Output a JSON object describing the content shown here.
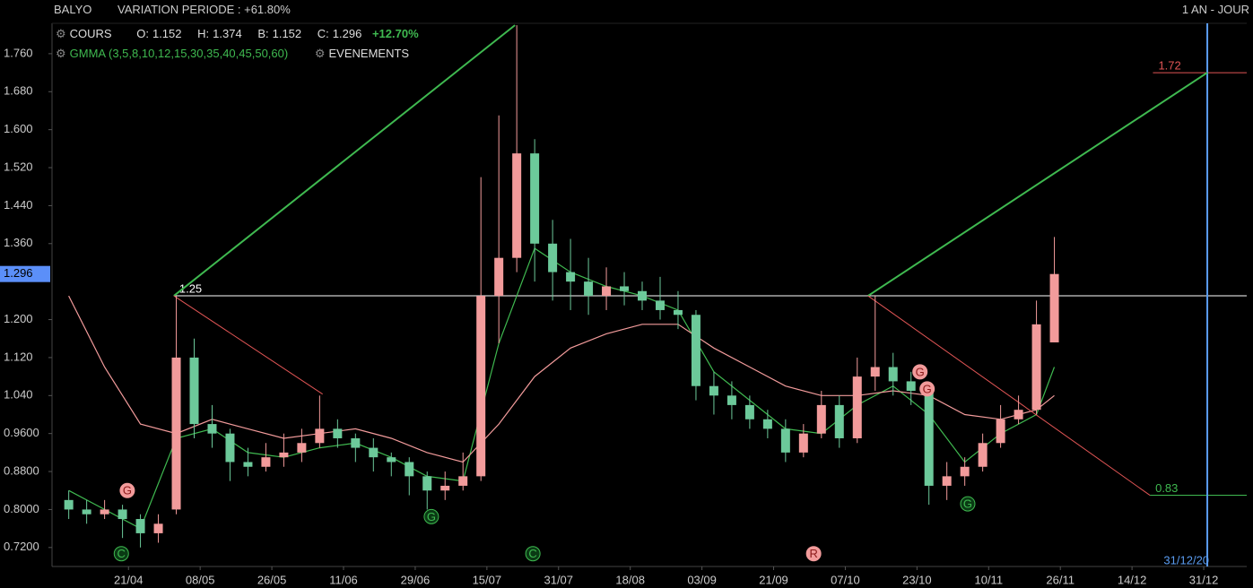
{
  "header": {
    "symbol": "BALYO",
    "variation": "VARIATION PERIODE : +61.80%",
    "period": "1 AN - JOUR"
  },
  "legend": {
    "cours": "COURS",
    "o": "O:",
    "h": "H:",
    "b": "B:",
    "c": "C:",
    "change": "+12.70%",
    "gmma": "GMMA (3,5,8,10,12,15,30,35,40,45,50,60)",
    "events": "EVENEMENTS"
  },
  "chart_data": {
    "type": "candlestick",
    "xlim": [
      -12.8,
      187.2
    ],
    "ylim": [
      0.68,
      1.824
    ],
    "xticks": [
      {
        "value": 0,
        "label": "21/04"
      },
      {
        "value": 12,
        "label": "08/05"
      },
      {
        "value": 24,
        "label": "26/05"
      },
      {
        "value": 36,
        "label": "11/06"
      },
      {
        "value": 48,
        "label": "29/06"
      },
      {
        "value": 60,
        "label": "15/07"
      },
      {
        "value": 72,
        "label": "31/07"
      },
      {
        "value": 84,
        "label": "18/08"
      },
      {
        "value": 96,
        "label": "03/09"
      },
      {
        "value": 108,
        "label": "21/09"
      },
      {
        "value": 120,
        "label": "07/10"
      },
      {
        "value": 132,
        "label": "23/10"
      },
      {
        "value": 144,
        "label": "10/11"
      },
      {
        "value": 156,
        "label": "26/11"
      },
      {
        "value": 168,
        "label": "14/12"
      },
      {
        "value": 180,
        "label": "31/12"
      }
    ],
    "yticks": [
      {
        "value": 1.76,
        "label": "1.760"
      },
      {
        "value": 1.68,
        "label": "1.680"
      },
      {
        "value": 1.6,
        "label": "1.600"
      },
      {
        "value": 1.52,
        "label": "1.520"
      },
      {
        "value": 1.44,
        "label": "1.440"
      },
      {
        "value": 1.36,
        "label": "1.360"
      },
      {
        "value": 1.2,
        "label": "1.200"
      },
      {
        "value": 1.12,
        "label": "1.120"
      },
      {
        "value": 1.04,
        "label": "1.040"
      },
      {
        "value": 0.96,
        "label": "0.9600"
      },
      {
        "value": 0.88,
        "label": "0.8800"
      },
      {
        "value": 0.8,
        "label": "0.8000"
      },
      {
        "value": 0.72,
        "label": "0.7200"
      }
    ],
    "up_color": "#f29b9b",
    "down_color": "#6cc99a",
    "candles": {
      "x": [
        -10,
        -7,
        -4,
        -1,
        2,
        5,
        8,
        11,
        14,
        17,
        20,
        23,
        26,
        29,
        32,
        35,
        38,
        41,
        44,
        47,
        50,
        53,
        56,
        59,
        62,
        65,
        68,
        71,
        74,
        77,
        80,
        83,
        86,
        89,
        92,
        95,
        98,
        101,
        104,
        107,
        110,
        113,
        116,
        119,
        122,
        125,
        128,
        131,
        134,
        137,
        140,
        143,
        146,
        149,
        152,
        155
      ],
      "open": [
        0.82,
        0.8,
        0.79,
        0.8,
        0.78,
        0.75,
        0.8,
        1.12,
        0.98,
        0.96,
        0.9,
        0.89,
        0.91,
        0.92,
        0.94,
        0.97,
        0.95,
        0.93,
        0.91,
        0.9,
        0.87,
        0.84,
        0.85,
        0.87,
        1.25,
        1.33,
        1.55,
        1.36,
        1.3,
        1.28,
        1.25,
        1.27,
        1.26,
        1.24,
        1.22,
        1.21,
        1.06,
        1.04,
        1.02,
        0.99,
        0.97,
        0.92,
        0.96,
        1.02,
        0.95,
        1.08,
        1.1,
        1.07,
        1.05,
        0.85,
        0.87,
        0.89,
        0.94,
        0.99,
        1.01,
        1.152
      ],
      "high": [
        0.84,
        0.82,
        0.82,
        0.81,
        0.79,
        0.79,
        1.25,
        1.16,
        1.02,
        0.97,
        0.93,
        0.94,
        0.96,
        0.97,
        1.04,
        0.99,
        0.96,
        0.95,
        0.92,
        0.91,
        0.88,
        0.88,
        0.92,
        1.5,
        1.63,
        1.82,
        1.58,
        1.41,
        1.37,
        1.33,
        1.31,
        1.3,
        1.28,
        1.29,
        1.26,
        1.22,
        1.09,
        1.07,
        1.04,
        1.01,
        0.99,
        0.98,
        1.05,
        1.04,
        1.12,
        1.25,
        1.13,
        1.09,
        1.06,
        0.9,
        0.91,
        0.96,
        1.02,
        1.04,
        1.24,
        1.374
      ],
      "low": [
        0.78,
        0.77,
        0.78,
        0.74,
        0.72,
        0.73,
        0.79,
        0.95,
        0.93,
        0.86,
        0.87,
        0.88,
        0.89,
        0.9,
        0.93,
        0.93,
        0.9,
        0.88,
        0.87,
        0.83,
        0.8,
        0.82,
        0.84,
        0.86,
        1.15,
        1.3,
        1.28,
        1.24,
        1.22,
        1.21,
        1.22,
        1.23,
        1.22,
        1.2,
        1.18,
        1.03,
        1.0,
        0.99,
        0.97,
        0.95,
        0.9,
        0.91,
        0.95,
        0.93,
        0.94,
        1.05,
        1.04,
        1.02,
        0.81,
        0.82,
        0.85,
        0.88,
        0.93,
        0.98,
        1.0,
        1.152
      ],
      "close": [
        0.8,
        0.79,
        0.8,
        0.78,
        0.75,
        0.77,
        1.12,
        0.98,
        0.96,
        0.9,
        0.89,
        0.91,
        0.92,
        0.94,
        0.97,
        0.95,
        0.93,
        0.91,
        0.9,
        0.87,
        0.84,
        0.85,
        0.87,
        1.25,
        1.33,
        1.55,
        1.36,
        1.3,
        1.28,
        1.25,
        1.27,
        1.26,
        1.24,
        1.22,
        1.21,
        1.06,
        1.04,
        1.02,
        0.99,
        0.97,
        0.92,
        0.96,
        1.02,
        0.95,
        1.08,
        1.1,
        1.07,
        1.05,
        0.85,
        0.87,
        0.89,
        0.94,
        0.99,
        1.01,
        1.19,
        1.296
      ]
    },
    "lines": [
      {
        "color": "#3fb950",
        "x": [
          -10,
          -4,
          2,
          8,
          14,
          20,
          26,
          32,
          38,
          44,
          50,
          56,
          62,
          68,
          74,
          80,
          86,
          92,
          98,
          104,
          110,
          116,
          122,
          128,
          134,
          140,
          146,
          152,
          155
        ],
        "values": [
          0.84,
          0.8,
          0.76,
          0.95,
          0.97,
          0.92,
          0.91,
          0.93,
          0.94,
          0.91,
          0.87,
          0.86,
          1.15,
          1.35,
          1.3,
          1.27,
          1.25,
          1.22,
          1.09,
          1.03,
          0.97,
          0.96,
          1.02,
          1.06,
          1.0,
          0.9,
          0.96,
          1.0,
          1.1
        ]
      },
      {
        "color": "#f29b9b",
        "x": [
          -10,
          -4,
          2,
          8,
          14,
          20,
          26,
          32,
          38,
          44,
          50,
          56,
          62,
          68,
          74,
          80,
          86,
          92,
          98,
          104,
          110,
          116,
          122,
          128,
          134,
          140,
          146,
          152,
          155
        ],
        "values": [
          1.25,
          1.1,
          0.98,
          0.96,
          0.99,
          0.97,
          0.95,
          0.96,
          0.97,
          0.95,
          0.92,
          0.9,
          0.98,
          1.08,
          1.14,
          1.17,
          1.19,
          1.19,
          1.14,
          1.1,
          1.06,
          1.04,
          1.04,
          1.05,
          1.04,
          1.0,
          0.99,
          1.01,
          1.04
        ]
      }
    ],
    "trendlines": [
      {
        "color": "#3fb950",
        "x": [
          7.6,
          64.7
        ],
        "y": [
          1.25,
          1.82
        ]
      },
      {
        "color": "#3fb950",
        "x": [
          123.8,
          180.6
        ],
        "y": [
          1.25,
          1.72
        ]
      },
      {
        "color": "#e05555",
        "x": [
          7.6,
          32.5
        ],
        "y": [
          1.25,
          1.043
        ]
      },
      {
        "color": "#e05555",
        "x": [
          123.8,
          171
        ],
        "y": [
          1.25,
          0.83
        ]
      }
    ],
    "levels": [
      {
        "value": 1.25,
        "color": "#ffffff",
        "x": [
          7.6,
          187.2
        ]
      },
      {
        "value": 1.72,
        "color": "#e05555",
        "x": [
          171.5,
          187.2
        ]
      },
      {
        "value": 0.83,
        "color": "#3fb950",
        "x": [
          171,
          187.2
        ]
      }
    ],
    "marker": {
      "x": 180.6,
      "label": "31/12/20",
      "color": "#5a9cf0"
    },
    "events": [
      {
        "x": -1.2,
        "y": 0.707,
        "letter": "C",
        "color": "#3fb950"
      },
      {
        "x": -0.2,
        "y": 0.84,
        "letter": "G",
        "color": "#f29b9b"
      },
      {
        "x": 50.7,
        "y": 0.785,
        "letter": "G",
        "color": "#3fb950"
      },
      {
        "x": 67.7,
        "y": 0.707,
        "letter": "C",
        "color": "#3fb950"
      },
      {
        "x": 114.7,
        "y": 0.707,
        "letter": "R",
        "color": "#f29b9b"
      },
      {
        "x": 132.5,
        "y": 1.09,
        "letter": "G",
        "color": "#f29b9b"
      },
      {
        "x": 133.7,
        "y": 1.054,
        "letter": "G",
        "color": "#f29b9b"
      },
      {
        "x": 140.5,
        "y": 0.812,
        "letter": "G",
        "color": "#3fb950"
      }
    ]
  }
}
